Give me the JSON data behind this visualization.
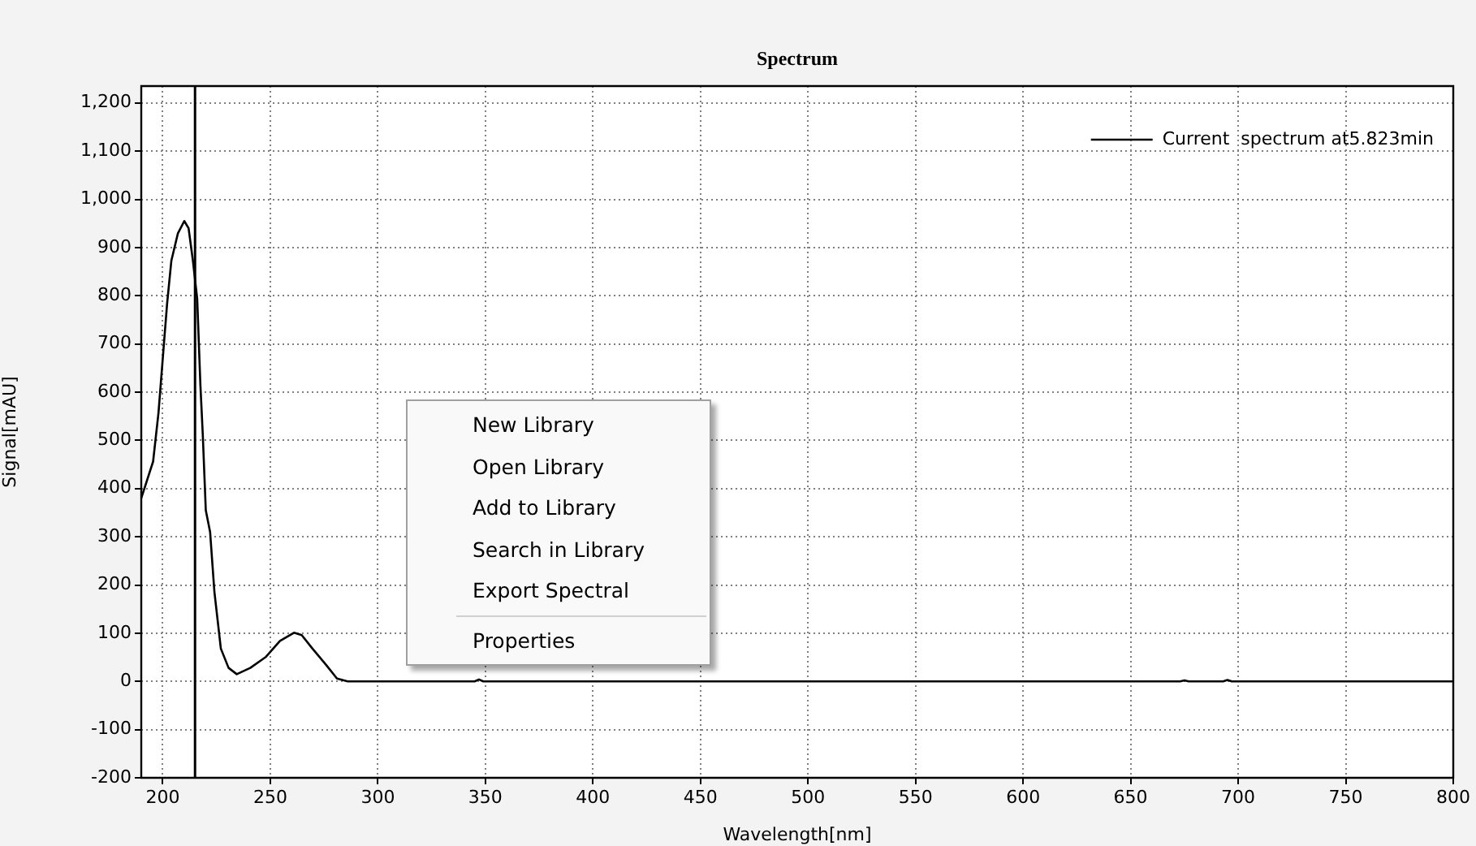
{
  "chart_data": {
    "type": "line",
    "title": "Spectrum",
    "xlabel": "Wavelength[nm]",
    "ylabel": "Signal[mAU]",
    "series": [
      {
        "name": "Current  spectrum at5.823min",
        "color": "#000000",
        "x": [
          190,
          191,
          195.5,
          198,
          200,
          202,
          204,
          207,
          210,
          212,
          214,
          216,
          217.5,
          218.6,
          220,
          222,
          224,
          227,
          230.6,
          234.4,
          240.7,
          248,
          254.5,
          261,
          264.6,
          269.6,
          276,
          281,
          286,
          300,
          345,
          347,
          349,
          400,
          500,
          600,
          673,
          675,
          677,
          693,
          695,
          697,
          750,
          800
        ],
        "values": [
          380,
          394,
          456,
          557,
          670,
          783,
          873,
          929,
          955,
          940,
          873,
          794,
          614,
          512,
          355,
          310,
          186,
          68,
          28,
          15,
          28,
          51,
          84,
          101,
          96,
          68,
          34,
          6,
          0,
          0,
          0,
          4,
          0,
          0,
          0,
          0,
          0,
          2,
          0,
          0,
          3,
          0,
          0,
          0
        ]
      }
    ],
    "xlim": [
      190,
      800
    ],
    "xticks": [
      200,
      250,
      300,
      350,
      400,
      450,
      500,
      550,
      600,
      650,
      700,
      750,
      800
    ],
    "ylim": [
      -200,
      1235
    ],
    "yticks": [
      -200,
      -100,
      0,
      100,
      200,
      300,
      400,
      500,
      600,
      700,
      800,
      900,
      {
        "value": 1000,
        "label": "1,000"
      },
      {
        "value": 1100,
        "label": "1,100"
      },
      {
        "value": 1200,
        "label": "1,200"
      }
    ],
    "ref_lines": [
      {
        "axis": "x",
        "value": 215,
        "color": "#000000"
      }
    ],
    "grid": true,
    "legend": "top right",
    "marker": "none",
    "line_style": "solid",
    "annotations": [
      "New Library",
      "Open Library",
      "Add to Library",
      "Search in Library",
      "Export Spectral",
      "Properties"
    ]
  }
}
